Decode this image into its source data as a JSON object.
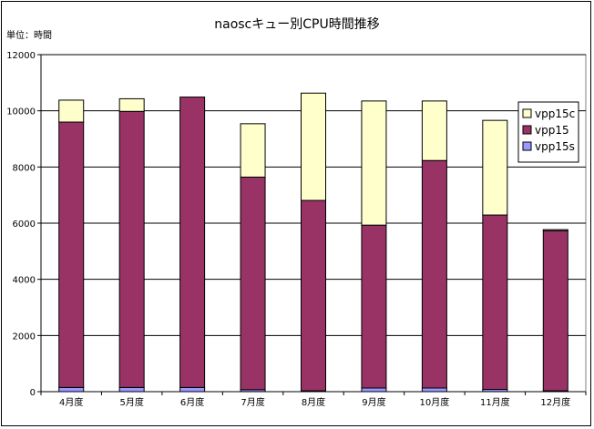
{
  "chart_data": {
    "type": "bar",
    "stacked": true,
    "title": "naoscキュー別CPU時間推移",
    "unit_label": "単位：時間",
    "categories": [
      "4月度",
      "5月度",
      "6月度",
      "7月度",
      "8月度",
      "9月度",
      "10月度",
      "11月度",
      "12月度"
    ],
    "series": [
      {
        "name": "vpp15s",
        "color": "#9999ff",
        "values": [
          150,
          150,
          150,
          70,
          30,
          130,
          130,
          80,
          30
        ]
      },
      {
        "name": "vpp15",
        "color": "#993366",
        "values": [
          9450,
          9830,
          10340,
          7570,
          6780,
          5800,
          8100,
          6210,
          5700
        ]
      },
      {
        "name": "vpp15c",
        "color": "#ffffcc",
        "values": [
          780,
          450,
          0,
          1900,
          3820,
          4420,
          2120,
          3370,
          40
        ]
      }
    ],
    "ylim": [
      0,
      12000
    ],
    "yticks": [
      "0",
      "2000",
      "4000",
      "6000",
      "8000",
      "10000",
      "12000"
    ],
    "grid": true,
    "legend_position": "right",
    "legend_order": [
      "vpp15c",
      "vpp15",
      "vpp15s"
    ]
  }
}
